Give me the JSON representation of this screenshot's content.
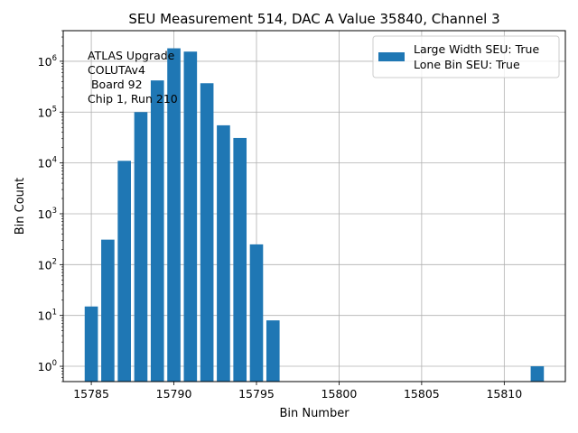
{
  "chart_data": {
    "type": "bar",
    "title": "SEU Measurement 514, DAC A Value 35840, Channel 3",
    "xlabel": "Bin Number",
    "ylabel": "Bin Count",
    "yscale": "log",
    "xlim": [
      15783.3,
      15813.7
    ],
    "ylim": [
      0.5,
      4000000
    ],
    "grid": true,
    "bar_color": "#1f77b4",
    "x": [
      15785,
      15786,
      15787,
      15788,
      15789,
      15790,
      15791,
      15792,
      15793,
      15794,
      15795,
      15796,
      15812
    ],
    "values": [
      15,
      310,
      11000,
      100000,
      420000,
      1800000,
      1550000,
      370000,
      55000,
      31000,
      250,
      8,
      1
    ],
    "x_ticks": [
      15785,
      15790,
      15795,
      15800,
      15805,
      15810
    ],
    "x_tick_labels": [
      "15785",
      "15790",
      "15795",
      "15800",
      "15805",
      "15810"
    ],
    "y_ticks": [
      1,
      10,
      100,
      1000,
      10000,
      100000,
      1000000
    ],
    "y_tick_labels": [
      {
        "base": "10",
        "exp": "0"
      },
      {
        "base": "10",
        "exp": "1"
      },
      {
        "base": "10",
        "exp": "2"
      },
      {
        "base": "10",
        "exp": "3"
      },
      {
        "base": "10",
        "exp": "4"
      },
      {
        "base": "10",
        "exp": "5"
      },
      {
        "base": "10",
        "exp": "6"
      }
    ],
    "legend": {
      "placement": "top-right",
      "lines": [
        "Large Width SEU: True",
        "Lone Bin SEU: True"
      ]
    },
    "annotation_lines": [
      "ATLAS Upgrade",
      "COLUTAv4",
      " Board 92",
      "Chip 1, Run 210"
    ]
  }
}
